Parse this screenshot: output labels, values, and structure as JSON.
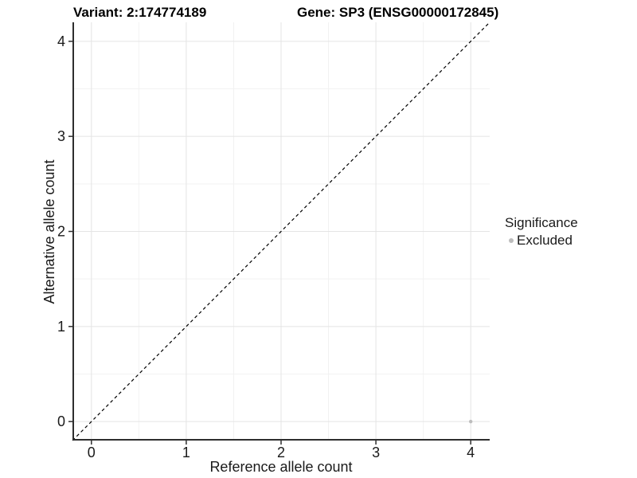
{
  "header": {
    "variant_title": "Variant: 2:174774189",
    "gene_title": "Gene: SP3 (ENSG00000172845)"
  },
  "axes": {
    "x_label": "Reference allele count",
    "y_label": "Alternative allele count"
  },
  "legend": {
    "title": "Significance",
    "items": [
      {
        "label": "Excluded",
        "color": "#bdbdbd"
      }
    ]
  },
  "chart_data": {
    "type": "scatter",
    "title": "Variant: 2:174774189 / Gene: SP3 (ENSG00000172845)",
    "xlabel": "Reference allele count",
    "ylabel": "Alternative allele count",
    "xlim": [
      -0.2,
      4.2
    ],
    "ylim": [
      -0.2,
      4.2
    ],
    "x_ticks": [
      0,
      1,
      2,
      3,
      4
    ],
    "y_ticks": [
      0,
      1,
      2,
      3,
      4
    ],
    "x_minor_ticks": [
      0.5,
      1.5,
      2.5,
      3.5
    ],
    "y_minor_ticks": [
      0.5,
      1.5,
      2.5,
      3.5
    ],
    "grid": true,
    "legend_position": "right",
    "series": [
      {
        "name": "Excluded",
        "color": "#bdbdbd",
        "point_radius": 2.2,
        "points": [
          [
            4,
            0
          ]
        ]
      }
    ],
    "reference_line": {
      "type": "identity y=x",
      "style": "dashed",
      "color": "#000000"
    },
    "colors": {
      "background": "#ffffff",
      "grid_major": "#e4e4e4",
      "grid_minor": "#f2f2f2",
      "axis_line": "#2e2e2e",
      "tick_text": "#1a1a1a",
      "point": "#bdbdbd"
    }
  }
}
